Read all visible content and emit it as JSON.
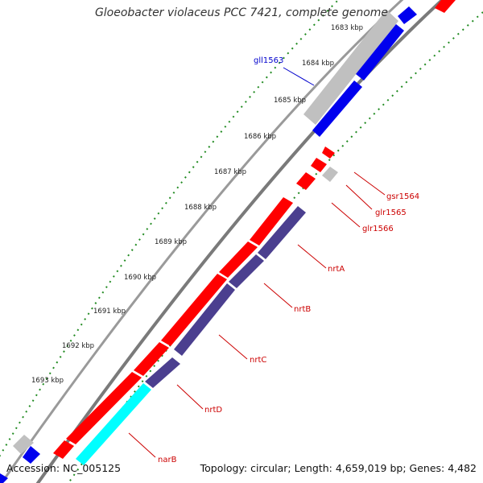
{
  "title": "Gloeobacter violaceus PCC 7421, complete genome",
  "accession": "Accession: NC_005125",
  "topology": "Topology: circular; Length: 4,659,019 bp; Genes: 4,482",
  "ticks": [
    "1683 kbp",
    "1684 kbp",
    "1685 kbp",
    "1686 kbp",
    "1687 kbp",
    "1688 kbp",
    "1689 kbp",
    "1690 kbp",
    "1691 kbp",
    "1692 kbp",
    "1693 kbp"
  ],
  "genes": [
    {
      "label": "gll1563",
      "strand": "minus",
      "color": "#0000dd"
    },
    {
      "label": "gsr1564",
      "strand": "plus",
      "color": "#cc0000"
    },
    {
      "label": "glr1565",
      "strand": "plus",
      "color": "#cc0000"
    },
    {
      "label": "glr1566",
      "strand": "plus",
      "color": "#cc0000"
    },
    {
      "label": "nrtA",
      "strand": "plus",
      "color": "#cc0000"
    },
    {
      "label": "nrtB",
      "strand": "plus",
      "color": "#cc0000"
    },
    {
      "label": "nrtC",
      "strand": "plus",
      "color": "#cc0000"
    },
    {
      "label": "nrtD",
      "strand": "plus",
      "color": "#cc0000"
    },
    {
      "label": "narB",
      "strand": "plus",
      "color": "#cc0000"
    }
  ],
  "colors": {
    "plus_gene": "#ff0000",
    "minus_gene": "#0000ee",
    "nitrate_transport": "#4b3f8f",
    "narB": "#00ffff",
    "other": "#c0c0c0",
    "backbone": "#777777",
    "tick_dots": "#228b22"
  }
}
